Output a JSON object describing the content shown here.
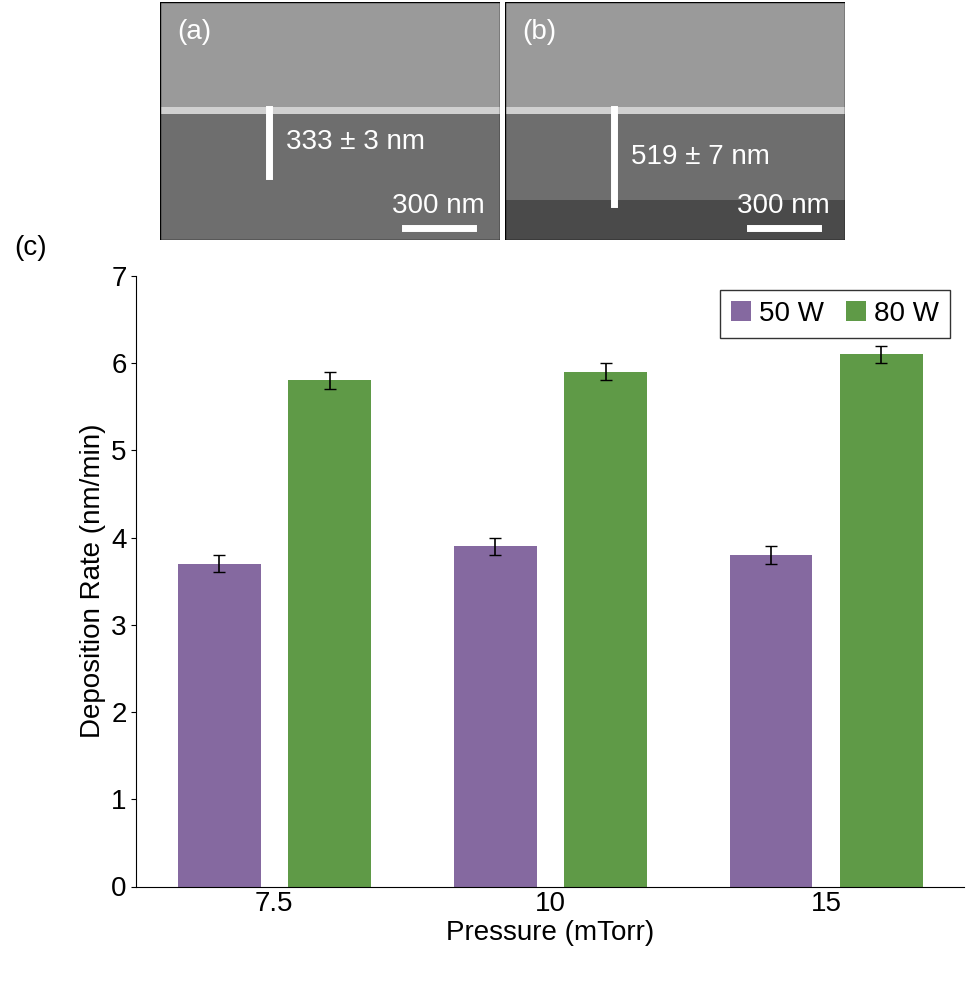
{
  "panels": [
    {
      "label": "(a)",
      "thickness": "333 ± 3 nm",
      "scale_bar": "300 nm"
    },
    {
      "label": "(b)",
      "thickness": "519 ± 7 nm",
      "scale_bar": "300 nm"
    }
  ],
  "chart_data": {
    "type": "bar",
    "panel_label": "(c)",
    "categories": [
      "7.5",
      "10",
      "15"
    ],
    "xlabel": "Pressure (mTorr)",
    "ylabel": "Deposition Rate (nm/min)",
    "series": [
      {
        "name": "50 W",
        "color": "#8569a0",
        "values": [
          3.7,
          3.9,
          3.8
        ],
        "errors": [
          0.1,
          0.1,
          0.1
        ]
      },
      {
        "name": "80 W",
        "color": "#5f9a47",
        "values": [
          5.8,
          5.9,
          6.1
        ],
        "errors": [
          0.1,
          0.1,
          0.1
        ]
      }
    ],
    "ylim": [
      0,
      7
    ],
    "yticks": [
      0,
      1,
      2,
      3,
      4,
      5,
      6,
      7
    ],
    "legend": "upper right"
  }
}
